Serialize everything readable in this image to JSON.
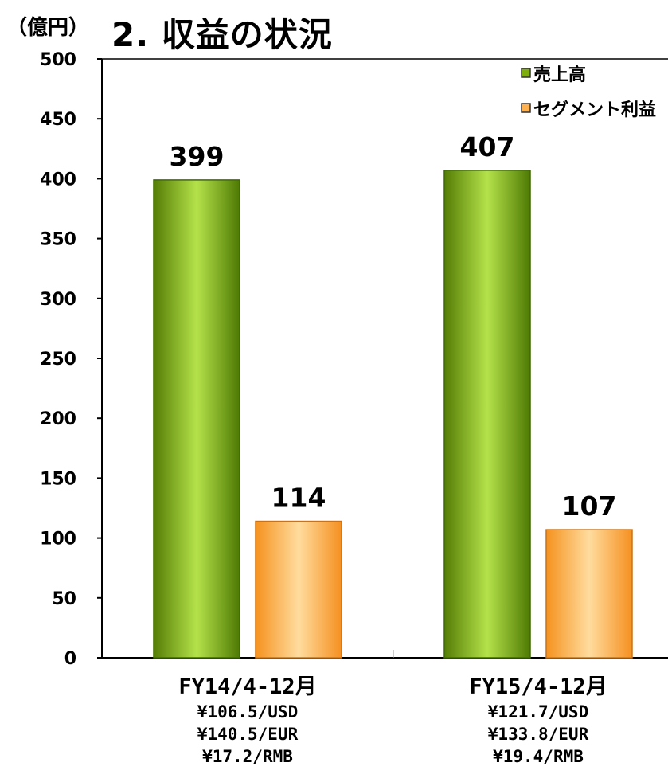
{
  "unit_label": "（億円）",
  "title": "2. 収益の状況",
  "colors": {
    "sales": "#7dae0e",
    "segment_profit": "#ffb150"
  },
  "chart_data": {
    "type": "bar",
    "title": "2. 収益の状況",
    "ylabel": "（億円）",
    "xlabel": "",
    "ylim": [
      0,
      500
    ],
    "yticks": [
      0,
      50,
      100,
      150,
      200,
      250,
      300,
      350,
      400,
      450,
      500
    ],
    "grid": false,
    "legend_position": "top-right",
    "categories": [
      "FY14/4-12月",
      "FY15/4-12月"
    ],
    "category_notes": [
      [
        "¥106.5/USD",
        "¥140.5/EUR",
        "¥17.2/RMB"
      ],
      [
        "¥121.7/USD",
        "¥133.8/EUR",
        "¥19.4/RMB"
      ]
    ],
    "series": [
      {
        "name": "売上高",
        "values": [
          399,
          407
        ]
      },
      {
        "name": "セグメント利益",
        "values": [
          114,
          107
        ]
      }
    ]
  }
}
